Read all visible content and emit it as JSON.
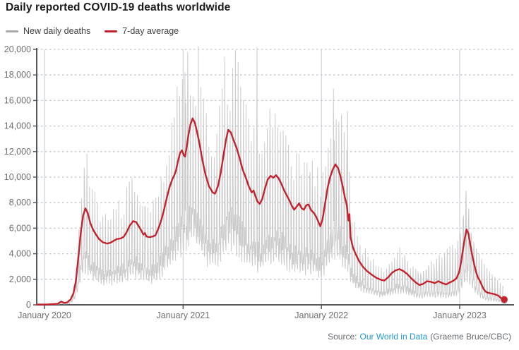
{
  "header": {
    "title": "Daily reported COVID-19 deaths worldwide"
  },
  "legend": [
    {
      "label": "New daily deaths",
      "color": "#a9a9a9"
    },
    {
      "label": "7-day average",
      "color": "#c2232f"
    }
  ],
  "footer": {
    "source_prefix": "Source:",
    "source_link": "Our World in Data",
    "source_suffix": "(Graeme Bruce/CBC)"
  },
  "colors": {
    "daily_line": "#cbcbcb",
    "avg_line": "#c2232f",
    "dotted_grid": "#bfc7cf",
    "year_grid": "#ccd2d9",
    "axis": "#54585c",
    "tick_text": "#6d7073",
    "title_text": "#1b1b1b",
    "link_blue": "#1f97d4"
  },
  "chart_data": {
    "type": "line",
    "title": "Daily reported COVID-19 deaths worldwide",
    "xlabel": "",
    "ylabel": "",
    "legend_position": "top-left",
    "grid": "horizontal-dotted, vertical-year-lines",
    "x_axis": {
      "tick_labels": [
        "January 2020",
        "January 2021",
        "January 2022",
        "January 2023"
      ],
      "tick_dates": [
        "2020-01-01",
        "2021-01-01",
        "2022-01-01",
        "2023-01-01"
      ],
      "end_date": "2023-04-25"
    },
    "y_axis": {
      "min": 0,
      "max": 20000,
      "step": 2000,
      "tick_labels": [
        "0",
        "2,000",
        "4,000",
        "6,000",
        "8,000",
        "10,000",
        "12,000",
        "14,000",
        "16,000",
        "18,000",
        "20,000"
      ]
    },
    "series": [
      {
        "name": "New daily deaths",
        "type": "daily",
        "derived": "avg_series_plus_noise"
      },
      {
        "name": "7-day average",
        "type": "average",
        "end_marker_value": 420
      }
    ],
    "avg_points": [
      [
        "2020-01-01",
        20
      ],
      [
        "2020-02-05",
        80
      ],
      [
        "2020-02-14",
        260
      ],
      [
        "2020-02-22",
        150
      ],
      [
        "2020-03-01",
        190
      ],
      [
        "2020-03-10",
        420
      ],
      [
        "2020-03-18",
        950
      ],
      [
        "2020-03-24",
        1900
      ],
      [
        "2020-03-30",
        3600
      ],
      [
        "2020-04-06",
        5700
      ],
      [
        "2020-04-12",
        7000
      ],
      [
        "2020-04-18",
        7550
      ],
      [
        "2020-04-24",
        7200
      ],
      [
        "2020-05-01",
        6400
      ],
      [
        "2020-05-08",
        5900
      ],
      [
        "2020-05-16",
        5500
      ],
      [
        "2020-05-24",
        5150
      ],
      [
        "2020-06-03",
        4900
      ],
      [
        "2020-06-14",
        4800
      ],
      [
        "2020-06-22",
        4850
      ],
      [
        "2020-07-01",
        5000
      ],
      [
        "2020-07-10",
        5150
      ],
      [
        "2020-07-20",
        5200
      ],
      [
        "2020-07-28",
        5320
      ],
      [
        "2020-08-05",
        5700
      ],
      [
        "2020-08-13",
        6200
      ],
      [
        "2020-08-22",
        6550
      ],
      [
        "2020-08-30",
        6480
      ],
      [
        "2020-09-08",
        6050
      ],
      [
        "2020-09-14",
        5750
      ],
      [
        "2020-09-18",
        5500
      ],
      [
        "2020-09-22",
        5620
      ],
      [
        "2020-09-26",
        5350
      ],
      [
        "2020-10-05",
        5300
      ],
      [
        "2020-10-14",
        5360
      ],
      [
        "2020-10-20",
        5450
      ],
      [
        "2020-10-28",
        6000
      ],
      [
        "2020-11-05",
        6700
      ],
      [
        "2020-11-12",
        7500
      ],
      [
        "2020-11-19",
        8400
      ],
      [
        "2020-11-26",
        9200
      ],
      [
        "2020-12-03",
        9800
      ],
      [
        "2020-12-08",
        10100
      ],
      [
        "2020-12-13",
        10500
      ],
      [
        "2020-12-18",
        11200
      ],
      [
        "2020-12-24",
        11900
      ],
      [
        "2020-12-29",
        12100
      ],
      [
        "2021-01-03",
        11700
      ],
      [
        "2021-01-06",
        11600
      ],
      [
        "2021-01-10",
        12300
      ],
      [
        "2021-01-15",
        13300
      ],
      [
        "2021-01-20",
        14100
      ],
      [
        "2021-01-26",
        14600
      ],
      [
        "2021-02-01",
        14250
      ],
      [
        "2021-02-07",
        13500
      ],
      [
        "2021-02-14",
        12500
      ],
      [
        "2021-02-21",
        11300
      ],
      [
        "2021-03-01",
        10200
      ],
      [
        "2021-03-10",
        9300
      ],
      [
        "2021-03-20",
        8800
      ],
      [
        "2021-03-26",
        8700
      ],
      [
        "2021-04-03",
        9300
      ],
      [
        "2021-04-10",
        10300
      ],
      [
        "2021-04-17",
        11600
      ],
      [
        "2021-04-24",
        12900
      ],
      [
        "2021-04-30",
        13700
      ],
      [
        "2021-05-07",
        13500
      ],
      [
        "2021-05-14",
        12900
      ],
      [
        "2021-05-22",
        12300
      ],
      [
        "2021-05-30",
        11500
      ],
      [
        "2021-06-07",
        10600
      ],
      [
        "2021-06-15",
        10000
      ],
      [
        "2021-06-23",
        9300
      ],
      [
        "2021-07-01",
        8800
      ],
      [
        "2021-07-06",
        8950
      ],
      [
        "2021-07-11",
        8500
      ],
      [
        "2021-07-16",
        8100
      ],
      [
        "2021-07-22",
        7900
      ],
      [
        "2021-07-29",
        8300
      ],
      [
        "2021-08-05",
        9100
      ],
      [
        "2021-08-12",
        9800
      ],
      [
        "2021-08-20",
        10100
      ],
      [
        "2021-08-27",
        9950
      ],
      [
        "2021-09-03",
        10150
      ],
      [
        "2021-09-10",
        9900
      ],
      [
        "2021-09-17",
        9500
      ],
      [
        "2021-09-24",
        9000
      ],
      [
        "2021-10-01",
        8600
      ],
      [
        "2021-10-08",
        8200
      ],
      [
        "2021-10-15",
        7750
      ],
      [
        "2021-10-21",
        7450
      ],
      [
        "2021-10-28",
        7700
      ],
      [
        "2021-11-03",
        7950
      ],
      [
        "2021-11-10",
        7550
      ],
      [
        "2021-11-16",
        7450
      ],
      [
        "2021-11-22",
        7800
      ],
      [
        "2021-11-28",
        7850
      ],
      [
        "2021-12-05",
        7400
      ],
      [
        "2021-12-12",
        7200
      ],
      [
        "2021-12-18",
        6900
      ],
      [
        "2021-12-24",
        6500
      ],
      [
        "2021-12-29",
        6150
      ],
      [
        "2022-01-04",
        6700
      ],
      [
        "2022-01-10",
        7800
      ],
      [
        "2022-01-17",
        9100
      ],
      [
        "2022-01-24",
        10000
      ],
      [
        "2022-01-31",
        10600
      ],
      [
        "2022-02-07",
        11000
      ],
      [
        "2022-02-14",
        10700
      ],
      [
        "2022-02-20",
        10100
      ],
      [
        "2022-02-26",
        9300
      ],
      [
        "2022-03-04",
        8400
      ],
      [
        "2022-03-09",
        7800
      ],
      [
        "2022-03-13",
        6600
      ],
      [
        "2022-03-16",
        7100
      ],
      [
        "2022-03-19",
        5300
      ],
      [
        "2022-03-25",
        4500
      ],
      [
        "2022-04-01",
        4000
      ],
      [
        "2022-04-10",
        3450
      ],
      [
        "2022-04-20",
        3000
      ],
      [
        "2022-05-01",
        2650
      ],
      [
        "2022-05-12",
        2400
      ],
      [
        "2022-05-24",
        2150
      ],
      [
        "2022-06-05",
        1980
      ],
      [
        "2022-06-16",
        1900
      ],
      [
        "2022-06-26",
        2150
      ],
      [
        "2022-07-06",
        2500
      ],
      [
        "2022-07-16",
        2700
      ],
      [
        "2022-07-26",
        2800
      ],
      [
        "2022-08-05",
        2650
      ],
      [
        "2022-08-16",
        2400
      ],
      [
        "2022-08-27",
        2050
      ],
      [
        "2022-09-07",
        1750
      ],
      [
        "2022-09-17",
        1550
      ],
      [
        "2022-09-27",
        1650
      ],
      [
        "2022-10-07",
        1850
      ],
      [
        "2022-10-17",
        1800
      ],
      [
        "2022-10-27",
        1700
      ],
      [
        "2022-11-06",
        1850
      ],
      [
        "2022-11-16",
        1700
      ],
      [
        "2022-11-26",
        1600
      ],
      [
        "2022-12-06",
        1750
      ],
      [
        "2022-12-16",
        1900
      ],
      [
        "2022-12-24",
        2100
      ],
      [
        "2022-12-31",
        2600
      ],
      [
        "2023-01-05",
        3400
      ],
      [
        "2023-01-10",
        4400
      ],
      [
        "2023-01-15",
        5300
      ],
      [
        "2023-01-19",
        5900
      ],
      [
        "2023-01-24",
        5600
      ],
      [
        "2023-01-29",
        4700
      ],
      [
        "2023-02-03",
        3900
      ],
      [
        "2023-02-08",
        3200
      ],
      [
        "2023-02-13",
        2600
      ],
      [
        "2023-02-18",
        2150
      ],
      [
        "2023-02-23",
        1900
      ],
      [
        "2023-02-28",
        1550
      ],
      [
        "2023-03-05",
        1250
      ],
      [
        "2023-03-10",
        1050
      ],
      [
        "2023-03-16",
        950
      ],
      [
        "2023-03-24",
        900
      ],
      [
        "2023-04-01",
        850
      ],
      [
        "2023-04-08",
        780
      ],
      [
        "2023-04-14",
        700
      ],
      [
        "2023-04-19",
        550
      ],
      [
        "2023-04-25",
        420
      ]
    ],
    "daily_outliers": [
      [
        "2020-04-16",
        8600
      ],
      [
        "2020-08-20",
        7200
      ],
      [
        "2020-09-22",
        7700
      ],
      [
        "2021-01-08",
        15800
      ],
      [
        "2021-01-14",
        16100
      ],
      [
        "2021-01-20",
        16400
      ],
      [
        "2021-01-27",
        16300
      ],
      [
        "2021-02-03",
        15600
      ],
      [
        "2021-04-28",
        15700
      ],
      [
        "2021-05-05",
        15200
      ],
      [
        "2021-07-15",
        20200
      ],
      [
        "2021-08-19",
        11600
      ],
      [
        "2021-12-02",
        10400
      ],
      [
        "2022-02-04",
        12900
      ],
      [
        "2022-03-11",
        15150
      ],
      [
        "2022-08-09",
        3900
      ],
      [
        "2022-09-13",
        2600
      ],
      [
        "2022-09-20",
        2500
      ],
      [
        "2022-09-27",
        2650
      ],
      [
        "2022-10-04",
        2700
      ],
      [
        "2022-10-11",
        3100
      ],
      [
        "2022-10-18",
        3400
      ],
      [
        "2022-10-25",
        3200
      ],
      [
        "2022-11-01",
        3600
      ],
      [
        "2022-11-08",
        3900
      ],
      [
        "2022-11-15",
        3700
      ],
      [
        "2022-11-22",
        4100
      ],
      [
        "2022-11-29",
        4400
      ],
      [
        "2022-12-06",
        4600
      ],
      [
        "2022-12-13",
        4700
      ],
      [
        "2022-12-20",
        4400
      ],
      [
        "2022-12-27",
        5000
      ],
      [
        "2023-01-03",
        5600
      ],
      [
        "2023-01-10",
        6600
      ],
      [
        "2023-01-17",
        8100
      ],
      [
        "2023-01-24",
        6600
      ],
      [
        "2023-01-31",
        5600
      ],
      [
        "2023-02-07",
        4900
      ],
      [
        "2023-02-14",
        4400
      ],
      [
        "2023-02-21",
        4000
      ],
      [
        "2023-02-28",
        3600
      ],
      [
        "2023-03-07",
        3200
      ],
      [
        "2023-03-14",
        2900
      ],
      [
        "2023-03-21",
        2600
      ],
      [
        "2023-03-28",
        2400
      ],
      [
        "2023-04-04",
        2200
      ],
      [
        "2023-04-11",
        1950
      ],
      [
        "2023-04-18",
        1700
      ],
      [
        "2023-04-25",
        1500
      ]
    ],
    "noise_eras": [
      {
        "until": "2020-03-10",
        "type": "abs",
        "amp": 40
      },
      {
        "until": "2022-03-25",
        "type": "weekly",
        "factors": [
          1.1,
          1.13,
          1.07,
          1.01,
          0.96,
          0.86,
          0.91
        ],
        "jitter": 0.05
      },
      {
        "until": "2022-07-01",
        "type": "weekly",
        "factors": [
          1.25,
          1.33,
          1.12,
          0.98,
          0.82,
          0.62,
          0.72
        ],
        "jitter": 0.1
      },
      {
        "until": "2023-04-25",
        "type": "weekly",
        "factors": [
          0.5,
          0.45,
          1.45,
          0.6,
          0.4,
          0.34,
          0.55
        ],
        "jitter": 0.12
      }
    ]
  }
}
